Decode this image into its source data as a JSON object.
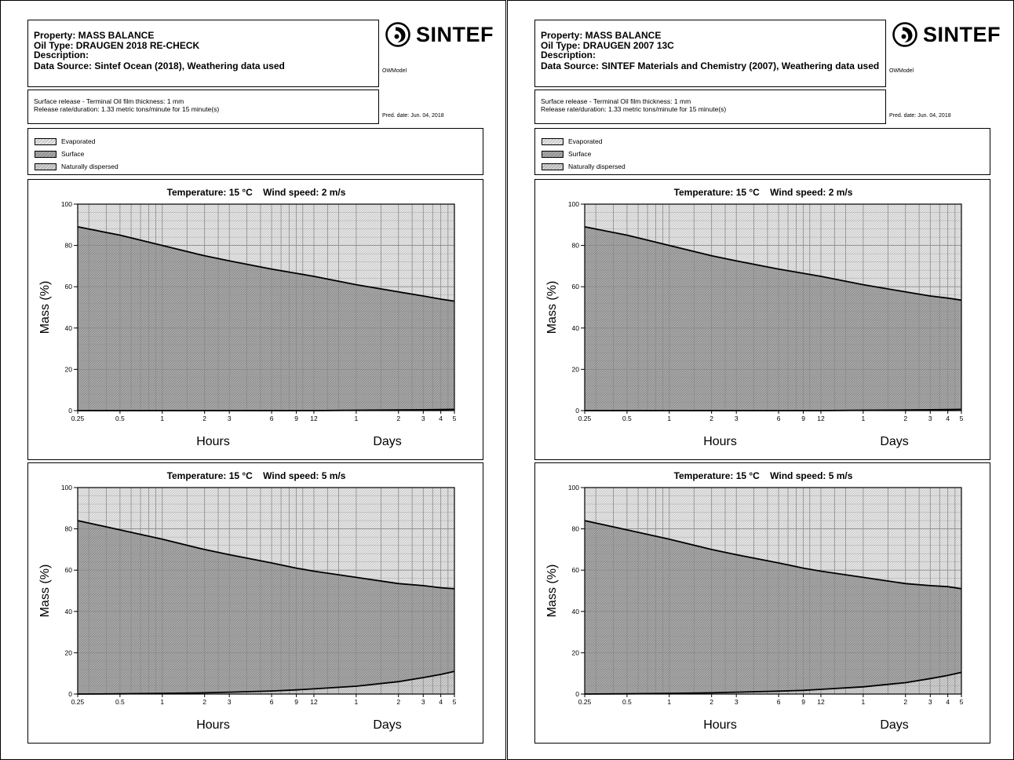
{
  "pages": [
    {
      "header": {
        "property": "Property: MASS BALANCE",
        "oil_type": "Oil Type: DRAUGEN 2018 RE-CHECK",
        "description": "Description:",
        "data_source": "Data Source: Sintef Ocean (2018), Weathering data used"
      },
      "logo_text": "SINTEF",
      "model_label": "OWModel",
      "release": {
        "line1": "Surface release - Terminal Oil film thickness: 1 mm",
        "line2": "Release rate/duration: 1.33 metric tons/minute for 15 minute(s)"
      },
      "pred_date": "Pred. date: Jun. 04, 2018",
      "legend": [
        "Evaporated",
        "Surface",
        "Naturally dispersed"
      ]
    },
    {
      "header": {
        "property": "Property: MASS BALANCE",
        "oil_type": "Oil Type: DRAUGEN 2007 13C",
        "description": "Description:",
        "data_source": "Data Source: SINTEF Materials and Chemistry (2007), Weathering data used"
      },
      "logo_text": "SINTEF",
      "model_label": "OWModel",
      "release": {
        "line1": "Surface release - Terminal Oil film thickness: 1 mm",
        "line2": "Release rate/duration: 1.33 metric tons/minute for 15 minute(s)"
      },
      "pred_date": "Pred. date: Jun. 04, 2018",
      "legend": [
        "Evaporated",
        "Surface",
        "Naturally dispersed"
      ]
    }
  ],
  "colors": {
    "evaporated": "#e6e6e6",
    "surface": "#a9a9a9",
    "dispersed": "#d2d2d2",
    "grid": "#8a8a8a"
  },
  "chart_data": [
    {
      "type": "area",
      "page": 0,
      "title": "Temperature: 15 °C    Wind speed: 2 m/s",
      "ylabel": "Mass (%)",
      "xlabel_left": "Hours",
      "xlabel_right": "Days",
      "x_scale": "log",
      "x_hours": [
        0.25,
        0.5,
        1,
        2,
        3,
        6,
        9,
        12,
        24,
        48,
        72,
        96,
        120
      ],
      "x_tick_labels": [
        "0.25",
        "0.5",
        "1",
        "2",
        "3",
        "6",
        "9",
        "12",
        "1",
        "2",
        "3",
        "4",
        "5"
      ],
      "y_ticks": [
        0,
        20,
        40,
        60,
        80,
        100
      ],
      "ylim": [
        0,
        100
      ],
      "grid": true,
      "series": [
        {
          "name": "Naturally dispersed",
          "values": [
            0,
            0,
            0,
            0,
            0,
            0,
            0,
            0,
            0.2,
            0.3,
            0.4,
            0.5,
            0.6
          ]
        },
        {
          "name": "Surface",
          "values": [
            89,
            85,
            80,
            75,
            72.5,
            68.5,
            66.5,
            65,
            61,
            57.5,
            55.5,
            54,
            53
          ]
        }
      ]
    },
    {
      "type": "area",
      "page": 0,
      "title": "Temperature: 15 °C    Wind speed: 5 m/s",
      "ylabel": "Mass (%)",
      "xlabel_left": "Hours",
      "xlabel_right": "Days",
      "x_scale": "log",
      "x_hours": [
        0.25,
        0.5,
        1,
        2,
        3,
        6,
        9,
        12,
        24,
        48,
        72,
        96,
        120
      ],
      "x_tick_labels": [
        "0.25",
        "0.5",
        "1",
        "2",
        "3",
        "6",
        "9",
        "12",
        "1",
        "2",
        "3",
        "4",
        "5"
      ],
      "y_ticks": [
        0,
        20,
        40,
        60,
        80,
        100
      ],
      "ylim": [
        0,
        100
      ],
      "grid": true,
      "series": [
        {
          "name": "Naturally dispersed",
          "values": [
            0,
            0.1,
            0.3,
            0.6,
            0.9,
            1.5,
            2,
            2.5,
            3.8,
            6,
            8,
            9.5,
            11
          ]
        },
        {
          "name": "Surface",
          "values": [
            84,
            79.5,
            75,
            70,
            67.5,
            63.5,
            61,
            59.5,
            56.5,
            53.5,
            52.5,
            51.5,
            51
          ]
        }
      ]
    },
    {
      "type": "area",
      "page": 1,
      "title": "Temperature: 15 °C    Wind speed: 2 m/s",
      "ylabel": "Mass (%)",
      "xlabel_left": "Hours",
      "xlabel_right": "Days",
      "x_scale": "log",
      "x_hours": [
        0.25,
        0.5,
        1,
        2,
        3,
        6,
        9,
        12,
        24,
        48,
        72,
        96,
        120
      ],
      "x_tick_labels": [
        "0.25",
        "0.5",
        "1",
        "2",
        "3",
        "6",
        "9",
        "12",
        "1",
        "2",
        "3",
        "4",
        "5"
      ],
      "y_ticks": [
        0,
        20,
        40,
        60,
        80,
        100
      ],
      "ylim": [
        0,
        100
      ],
      "grid": true,
      "series": [
        {
          "name": "Naturally dispersed",
          "values": [
            0,
            0,
            0,
            0,
            0,
            0,
            0,
            0,
            0.2,
            0.3,
            0.4,
            0.5,
            0.6
          ]
        },
        {
          "name": "Surface",
          "values": [
            89,
            85,
            80,
            75,
            72.5,
            68.5,
            66.5,
            65,
            61,
            57.5,
            55.5,
            54.5,
            53.5
          ]
        }
      ]
    },
    {
      "type": "area",
      "page": 1,
      "title": "Temperature: 15 °C    Wind speed: 5 m/s",
      "ylabel": "Mass (%)",
      "xlabel_left": "Hours",
      "xlabel_right": "Days",
      "x_scale": "log",
      "x_hours": [
        0.25,
        0.5,
        1,
        2,
        3,
        6,
        9,
        12,
        24,
        48,
        72,
        96,
        120
      ],
      "x_tick_labels": [
        "0.25",
        "0.5",
        "1",
        "2",
        "3",
        "6",
        "9",
        "12",
        "1",
        "2",
        "3",
        "4",
        "5"
      ],
      "y_ticks": [
        0,
        20,
        40,
        60,
        80,
        100
      ],
      "ylim": [
        0,
        100
      ],
      "grid": true,
      "series": [
        {
          "name": "Naturally dispersed",
          "values": [
            0,
            0.1,
            0.3,
            0.6,
            0.9,
            1.4,
            1.8,
            2.3,
            3.5,
            5.5,
            7.5,
            9,
            10.5
          ]
        },
        {
          "name": "Surface",
          "values": [
            84,
            79.5,
            75,
            70,
            67.5,
            63.5,
            61,
            59.5,
            56.5,
            53.5,
            52.5,
            52,
            51
          ]
        }
      ]
    }
  ]
}
